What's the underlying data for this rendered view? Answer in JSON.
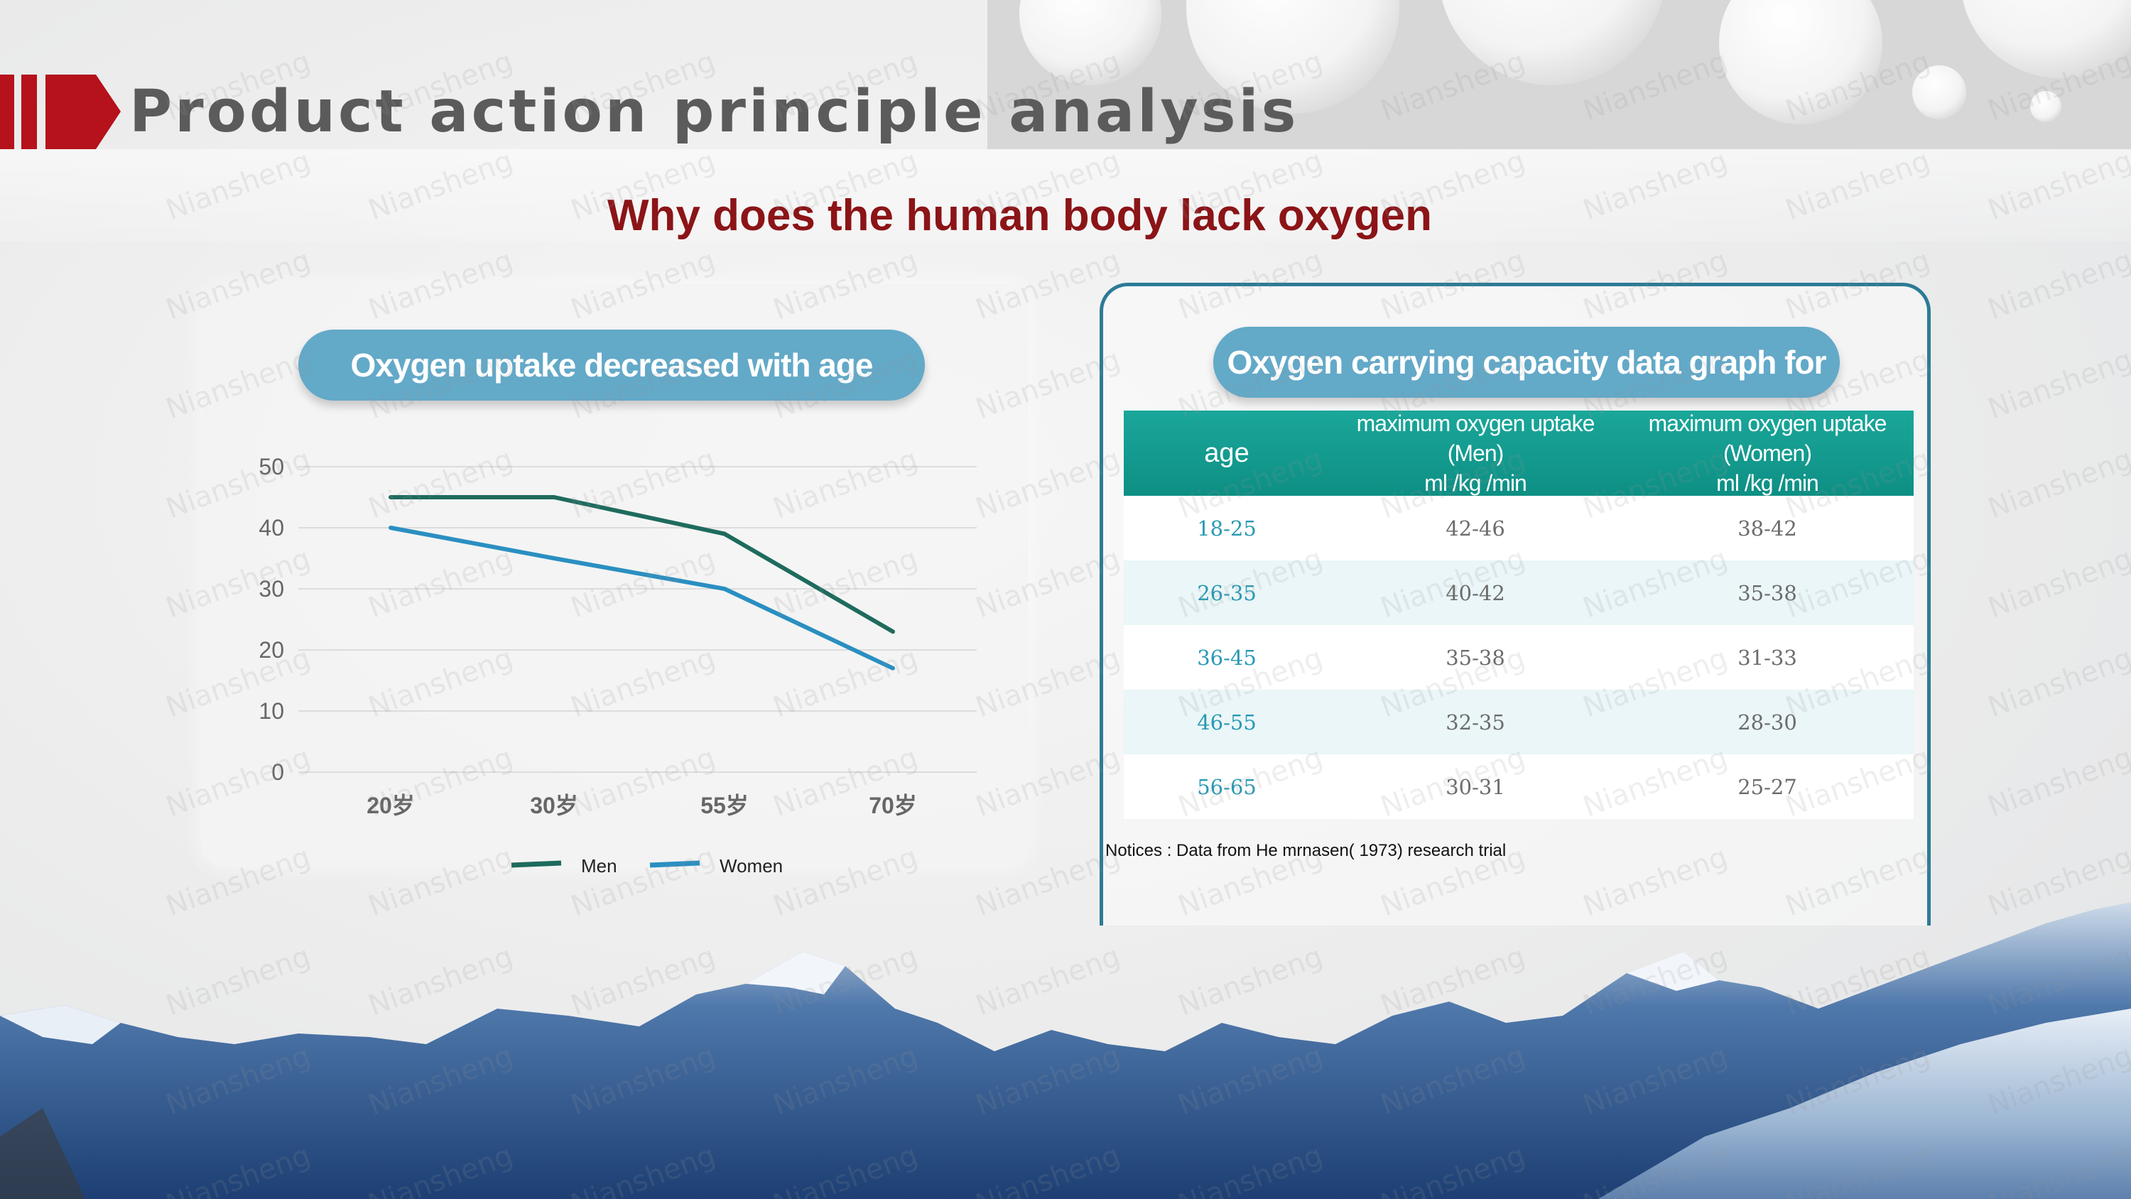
{
  "slide": {
    "title": "Product action principle analysis",
    "subtitle": "Why does  the human body lack oxygen"
  },
  "left_panel": {
    "pill_title": "Oxygen uptake decreased with age"
  },
  "chart_data": {
    "type": "line",
    "categories": [
      "20岁",
      "30岁",
      "55岁",
      "70岁"
    ],
    "series": [
      {
        "name": "Men",
        "values": [
          45,
          45,
          39,
          23
        ],
        "color": "#1e6b5d"
      },
      {
        "name": "Women",
        "values": [
          40,
          35,
          30,
          17
        ],
        "color": "#2a8fc1"
      }
    ],
    "yticks": [
      0,
      10,
      20,
      30,
      40,
      50
    ],
    "ylim": [
      0,
      50
    ],
    "grid": true,
    "legend": "bottom"
  },
  "right_panel": {
    "pill_title": "Oxygen carrying capacity data graph for men and women",
    "table": {
      "headers": {
        "age": "age",
        "men_line1": "maximum oxygen uptake (Men)",
        "men_line2": "ml /kg /min",
        "women_line1": "maximum oxygen uptake (Women)",
        "women_line2": "ml /kg /min"
      },
      "rows": [
        {
          "age": "18-25",
          "men": "42-46",
          "women": "38-42"
        },
        {
          "age": "26-35",
          "men": "40-42",
          "women": "35-38"
        },
        {
          "age": "36-45",
          "men": "35-38",
          "women": "31-33"
        },
        {
          "age": "46-55",
          "men": "32-35",
          "women": "28-30"
        },
        {
          "age": "56-65",
          "men": "30-31",
          "women": "25-27"
        }
      ]
    },
    "notice": "Notices : Data from He mrnasen( 1973) research trial"
  },
  "watermark": "Niansheng",
  "colors": {
    "accent_red": "#8b1417",
    "title_bar_red": "#b5121b",
    "pill_blue": "#63a9c8",
    "table_header_teal": "#139b8f"
  }
}
